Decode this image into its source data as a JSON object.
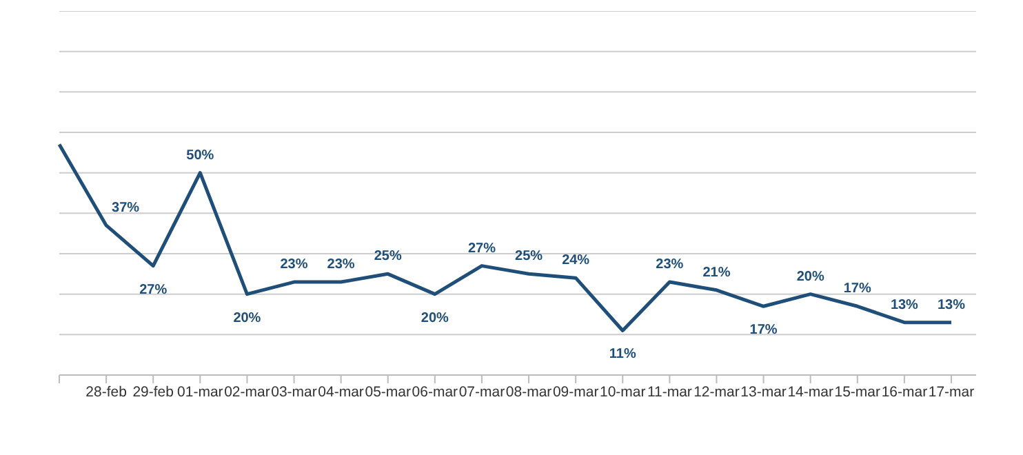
{
  "chart_data": {
    "type": "line",
    "categories": [
      null,
      "28-feb",
      "29-feb",
      "01-mar",
      "02-mar",
      "03-mar",
      "04-mar",
      "05-mar",
      "06-mar",
      "07-mar",
      "08-mar",
      "09-mar",
      "10-mar",
      "11-mar",
      "12-mar",
      "13-mar",
      "14-mar",
      "15-mar",
      "16-mar",
      "17-mar"
    ],
    "series": [
      {
        "color": "#1f4e79",
        "values": [
          57,
          37,
          27,
          50,
          20,
          23,
          23,
          25,
          20,
          27,
          25,
          24,
          11,
          23,
          21,
          17,
          20,
          17,
          13,
          13
        ],
        "value_labels": [
          null,
          "37%",
          "27%",
          "50%",
          "20%",
          "23%",
          "23%",
          "25%",
          "20%",
          "27%",
          "25%",
          "24%",
          "11%",
          "23%",
          "21%",
          "17%",
          "20%",
          "17%",
          "13%",
          "13%"
        ]
      }
    ],
    "ylim": [
      0,
      90
    ],
    "yticks": [
      {
        "value": 0,
        "label": null
      },
      {
        "value": 10,
        "label": null
      },
      {
        "value": 20,
        "label": null
      },
      {
        "value": 30,
        "label": null
      },
      {
        "value": 40,
        "label": null
      },
      {
        "value": 50,
        "label": null
      },
      {
        "value": 60,
        "label": null
      },
      {
        "value": 70,
        "label": null
      },
      {
        "value": 80,
        "label": null
      },
      {
        "value": 90,
        "label": null
      }
    ],
    "tick_labels": "x",
    "grid": "y",
    "legend": false,
    "marker": "none",
    "line_style": "solid"
  }
}
